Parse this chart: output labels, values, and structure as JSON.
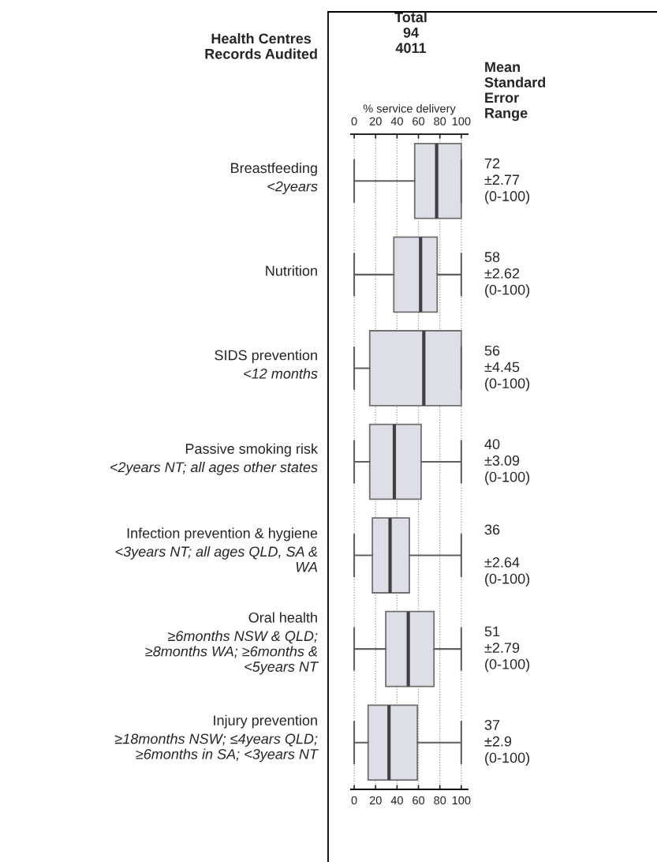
{
  "chart_data": {
    "type": "box",
    "categories": [
      "Breastfeeding\n<2years",
      "Nutrition",
      "SIDS prevention\n<12 months",
      "Passive smoking risk\n<2years NT; all ages other states",
      "Infection prevention & hygiene\n<3years NT; all ages QLD, SA &\nWA",
      "Oral health\n≥6months NSW & QLD;\n≥8months WA; ≥6months &\n<5years NT",
      "Injury prevention\n≥18months NSW; ≤4years QLD;\n≥6months in SA; <3years NT"
    ],
    "orientation": "horizontal",
    "color": "#dedee6",
    "boxes": [
      {
        "low": 0,
        "q1": 56.5,
        "median": 77,
        "q3": 100,
        "high": 100
      },
      {
        "low": 0,
        "q1": 37,
        "median": 62,
        "q3": 77.5,
        "high": 100
      },
      {
        "low": 0,
        "q1": 14.5,
        "median": 65,
        "q3": 100,
        "high": 100
      },
      {
        "low": 0,
        "q1": 14.5,
        "median": 37.5,
        "q3": 62.5,
        "high": 100
      },
      {
        "low": 0,
        "q1": 17,
        "median": 33.5,
        "q3": 51.5,
        "high": 100
      },
      {
        "low": 0,
        "q1": 29.5,
        "median": 50.5,
        "q3": 74.5,
        "high": 100
      },
      {
        "low": 0,
        "q1": 13,
        "median": 32.5,
        "q3": 59,
        "high": 100
      }
    ],
    "x2label": "% service delivery",
    "xlim": [
      -3,
      106
    ],
    "xticks": [
      0,
      20,
      40,
      60,
      80,
      100
    ],
    "x2lim": [
      -3,
      106
    ],
    "x2ticks": [
      0,
      20,
      40,
      60,
      80,
      100
    ],
    "grid": "x",
    "annotations": [
      "Health Centres\nRecords Audited",
      "Total\n94\n4011",
      "Mean\nStandard\nError\nRange",
      "72\n±2.77\n(0-100)",
      "58\n±2.62\n(0-100)",
      "56\n±4.45\n(0-100)",
      "40\n±3.09\n(0-100)",
      "36\n\n±2.64\n(0-100)",
      "51\n±2.79\n(0-100)",
      "37\n±2.9\n(0-100)"
    ]
  }
}
